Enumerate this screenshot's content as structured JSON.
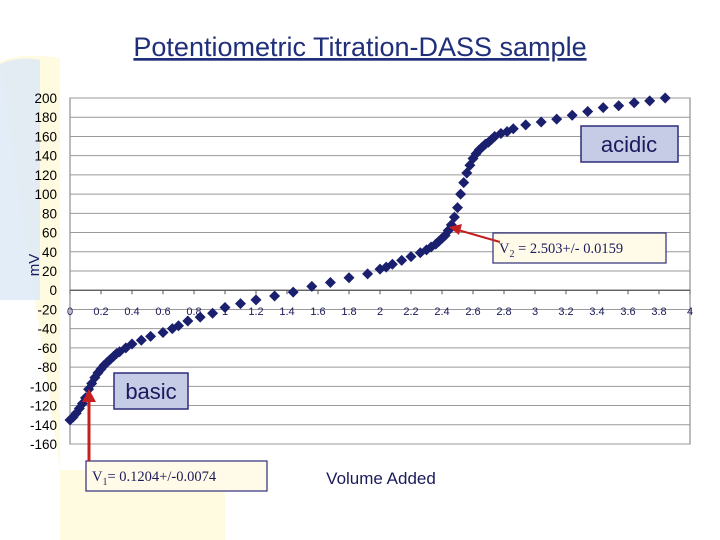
{
  "title": "Potentiometric Titration-DASS sample",
  "colors": {
    "title": "#1f2f7a",
    "marker": "#1a1f6e",
    "arrow": "#c42020",
    "box_fill": "#c6cbe6",
    "box_stroke": "#2d2d7a",
    "v_box_fill": "#fffbe8",
    "grid": "#9a9a9a",
    "accent_bg": "#fffbe0",
    "accent_blue": "#dbe8f6"
  },
  "chart_data": {
    "type": "scatter",
    "title": "Potentiometric Titration-DASS sample",
    "xlabel": "Volume Added",
    "ylabel": "mV",
    "xlim": [
      0,
      4
    ],
    "ylim": [
      -160,
      200
    ],
    "x_ticks": [
      0,
      0.2,
      0.4,
      0.6,
      0.8,
      1,
      1.2,
      1.4,
      1.6,
      1.8,
      2,
      2.2,
      2.4,
      2.6,
      2.8,
      3,
      3.2,
      3.4,
      3.6,
      3.8,
      4
    ],
    "x_tick_labels": [
      "0",
      "0.2",
      "0.4",
      "0.6",
      "0.8",
      "1",
      "1.2",
      "1.4",
      "1.6",
      "1.8",
      "2",
      "2.2",
      "2.4",
      "2.6",
      "2.8",
      "3",
      "3.2",
      "3.4",
      "3.6",
      "3.8",
      "4"
    ],
    "y_ticks": [
      200,
      180,
      160,
      140,
      120,
      100,
      80,
      60,
      40,
      20,
      0,
      -20,
      -40,
      -60,
      -80,
      -100,
      -120,
      -140,
      -160
    ],
    "y_tick_labels": [
      "200",
      "180",
      "160",
      "140",
      "120",
      "100",
      "80",
      "60",
      "40",
      "20",
      "0",
      "-20",
      "-40",
      "-60",
      "-80",
      "-100",
      "-120",
      "-140",
      "-160"
    ],
    "grid": true,
    "series": [
      {
        "x": [
          0.0,
          0.02,
          0.04,
          0.06,
          0.08,
          0.1,
          0.12,
          0.14,
          0.16,
          0.18,
          0.2,
          0.22,
          0.24,
          0.26,
          0.28,
          0.3,
          0.32,
          0.36,
          0.4,
          0.46,
          0.52,
          0.6,
          0.66,
          0.7,
          0.76,
          0.84,
          0.92,
          1.0,
          1.1,
          1.2,
          1.32,
          1.44,
          1.56,
          1.68,
          1.8,
          1.92,
          2.0,
          2.04,
          2.08,
          2.14,
          2.2,
          2.26,
          2.3,
          2.33,
          2.36,
          2.38,
          2.4,
          2.42,
          2.44,
          2.46,
          2.48,
          2.5,
          2.52,
          2.54,
          2.56,
          2.58,
          2.6,
          2.62,
          2.64,
          2.66,
          2.68,
          2.7,
          2.72,
          2.74,
          2.78,
          2.82,
          2.86,
          2.94,
          3.04,
          3.14,
          3.24,
          3.34,
          3.44,
          3.54,
          3.64,
          3.74,
          3.84
        ],
        "y": [
          -135,
          -132,
          -128,
          -123,
          -118,
          -112,
          -103,
          -97,
          -91,
          -86,
          -82,
          -78,
          -75,
          -72,
          -69,
          -66,
          -64,
          -60,
          -56,
          -52,
          -48,
          -44,
          -40,
          -37,
          -32,
          -28,
          -24,
          -18,
          -14,
          -10,
          -6,
          -2,
          4,
          8,
          13,
          17,
          22,
          24,
          27,
          31,
          35,
          39,
          42,
          45,
          48,
          51,
          54,
          57,
          62,
          68,
          76,
          86,
          100,
          112,
          122,
          130,
          137,
          142,
          146,
          149,
          152,
          154,
          157,
          160,
          163,
          165,
          168,
          172,
          175,
          178,
          182,
          186,
          190,
          192,
          195,
          197,
          200
        ]
      }
    ],
    "annotations": [
      {
        "text": "acidic",
        "x": 3.65,
        "y": 150
      },
      {
        "text": "basic",
        "x": 0.5,
        "y": -100
      }
    ]
  },
  "annotations": {
    "acidic": "acidic",
    "basic": "basic",
    "v2": {
      "label": "V",
      "sub": "2",
      "value": " = 2.503+/- 0.0159"
    },
    "v1": {
      "label": "V",
      "sub": "1",
      "value": "= 0.1204+/-0.0074"
    }
  }
}
